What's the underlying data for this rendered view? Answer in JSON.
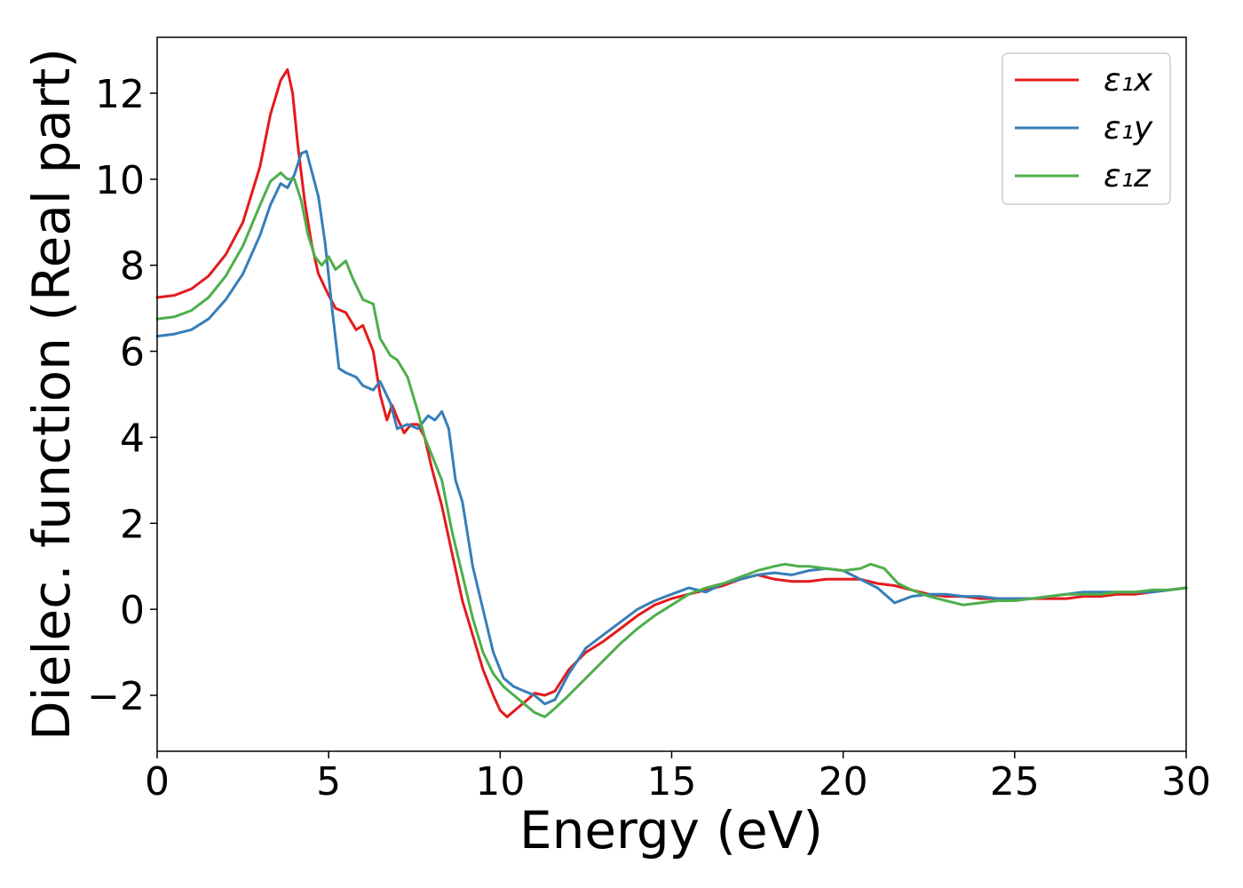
{
  "chart_data": {
    "type": "line",
    "title": "",
    "xlabel": "Energy (eV)",
    "ylabel": "Dielec. function (Real part)",
    "xlim": [
      0,
      30
    ],
    "ylim": [
      -3.3,
      13.3
    ],
    "xticks": [
      "0",
      "5",
      "10",
      "15",
      "20",
      "25",
      "30"
    ],
    "yticks": [
      "−2",
      "0",
      "2",
      "4",
      "6",
      "8",
      "10",
      "12"
    ],
    "grid": false,
    "legend_position": "top-right",
    "series": [
      {
        "name": "ε₁x",
        "color": "#e41a1c",
        "x": [
          0,
          0.5,
          1.0,
          1.5,
          2.0,
          2.5,
          3.0,
          3.3,
          3.6,
          3.8,
          3.95,
          4.1,
          4.3,
          4.5,
          4.7,
          5.0,
          5.2,
          5.5,
          5.8,
          6.0,
          6.3,
          6.5,
          6.7,
          6.85,
          7.0,
          7.2,
          7.4,
          7.6,
          7.8,
          8.0,
          8.3,
          8.6,
          8.9,
          9.2,
          9.5,
          9.8,
          10.0,
          10.2,
          10.5,
          10.8,
          11.0,
          11.3,
          11.6,
          12.0,
          12.5,
          13.0,
          13.5,
          14.0,
          14.5,
          15.0,
          15.5,
          16.0,
          16.5,
          17.0,
          17.5,
          18.0,
          18.5,
          19.0,
          19.5,
          20.0,
          20.5,
          21.0,
          21.5,
          22.0,
          22.5,
          23.0,
          23.5,
          24.0,
          24.5,
          25.0,
          25.5,
          26.0,
          26.5,
          27.0,
          27.5,
          28.0,
          28.5,
          29.0,
          29.5,
          30.0
        ],
        "values": [
          7.25,
          7.3,
          7.45,
          7.75,
          8.25,
          9.0,
          10.3,
          11.5,
          12.3,
          12.55,
          12.0,
          10.8,
          9.5,
          8.5,
          7.8,
          7.3,
          7.0,
          6.9,
          6.5,
          6.6,
          6.0,
          5.0,
          4.4,
          4.75,
          4.45,
          4.1,
          4.3,
          4.3,
          4.0,
          3.3,
          2.4,
          1.3,
          0.2,
          -0.6,
          -1.4,
          -2.0,
          -2.35,
          -2.5,
          -2.3,
          -2.1,
          -1.95,
          -2.0,
          -1.9,
          -1.4,
          -1.0,
          -0.75,
          -0.45,
          -0.15,
          0.1,
          0.25,
          0.35,
          0.45,
          0.55,
          0.7,
          0.8,
          0.7,
          0.65,
          0.65,
          0.7,
          0.7,
          0.7,
          0.6,
          0.55,
          0.45,
          0.35,
          0.3,
          0.3,
          0.25,
          0.25,
          0.25,
          0.25,
          0.25,
          0.25,
          0.3,
          0.3,
          0.35,
          0.35,
          0.4,
          0.45,
          0.5
        ]
      },
      {
        "name": "ε₁y",
        "color": "#377eb8",
        "x": [
          0,
          0.5,
          1.0,
          1.5,
          2.0,
          2.5,
          3.0,
          3.3,
          3.6,
          3.8,
          4.0,
          4.2,
          4.35,
          4.5,
          4.7,
          4.9,
          5.1,
          5.3,
          5.5,
          5.8,
          6.0,
          6.3,
          6.5,
          6.8,
          7.0,
          7.3,
          7.6,
          7.9,
          8.1,
          8.3,
          8.5,
          8.7,
          8.9,
          9.2,
          9.5,
          9.8,
          10.1,
          10.4,
          10.7,
          11.0,
          11.3,
          11.6,
          12.0,
          12.5,
          13.0,
          13.5,
          14.0,
          14.5,
          15.0,
          15.5,
          16.0,
          16.5,
          17.0,
          17.5,
          18.0,
          18.5,
          19.0,
          19.5,
          20.0,
          20.5,
          21.0,
          21.5,
          22.0,
          22.5,
          23.0,
          23.5,
          24.0,
          24.5,
          25.0,
          25.5,
          26.0,
          26.5,
          27.0,
          27.5,
          28.0,
          28.5,
          29.0,
          29.5,
          30.0
        ],
        "values": [
          6.35,
          6.4,
          6.5,
          6.75,
          7.2,
          7.8,
          8.7,
          9.4,
          9.9,
          9.8,
          10.1,
          10.6,
          10.65,
          10.2,
          9.6,
          8.5,
          7.0,
          5.6,
          5.5,
          5.4,
          5.2,
          5.1,
          5.3,
          4.8,
          4.2,
          4.3,
          4.2,
          4.5,
          4.4,
          4.6,
          4.2,
          3.0,
          2.5,
          1.0,
          0.0,
          -1.0,
          -1.6,
          -1.8,
          -1.9,
          -2.0,
          -2.2,
          -2.1,
          -1.5,
          -0.9,
          -0.6,
          -0.3,
          0.0,
          0.2,
          0.35,
          0.5,
          0.4,
          0.6,
          0.7,
          0.8,
          0.85,
          0.8,
          0.9,
          0.95,
          0.9,
          0.7,
          0.5,
          0.15,
          0.3,
          0.35,
          0.35,
          0.3,
          0.3,
          0.25,
          0.25,
          0.25,
          0.3,
          0.35,
          0.4,
          0.4,
          0.4,
          0.4,
          0.4,
          0.45,
          0.5
        ]
      },
      {
        "name": "ε₁z",
        "color": "#4daf4a",
        "x": [
          0,
          0.5,
          1.0,
          1.5,
          2.0,
          2.5,
          3.0,
          3.3,
          3.6,
          3.8,
          4.0,
          4.2,
          4.4,
          4.6,
          4.8,
          5.0,
          5.2,
          5.5,
          5.7,
          6.0,
          6.3,
          6.5,
          6.8,
          7.0,
          7.3,
          7.6,
          7.8,
          8.0,
          8.3,
          8.6,
          8.9,
          9.2,
          9.5,
          9.8,
          10.1,
          10.4,
          10.7,
          11.0,
          11.3,
          11.6,
          12.0,
          12.5,
          13.0,
          13.5,
          14.0,
          14.5,
          15.0,
          15.5,
          16.0,
          16.5,
          17.0,
          17.5,
          18.0,
          18.3,
          18.7,
          19.0,
          19.5,
          20.0,
          20.5,
          20.8,
          21.2,
          21.6,
          22.0,
          22.5,
          23.0,
          23.5,
          24.0,
          24.5,
          25.0,
          25.5,
          26.0,
          26.5,
          27.0,
          27.5,
          28.0,
          28.5,
          29.0,
          29.5,
          30.0
        ],
        "values": [
          6.75,
          6.8,
          6.95,
          7.25,
          7.75,
          8.45,
          9.4,
          9.95,
          10.15,
          10.0,
          10.0,
          9.5,
          8.7,
          8.2,
          8.0,
          8.2,
          7.9,
          8.1,
          7.7,
          7.2,
          7.1,
          6.3,
          5.9,
          5.8,
          5.4,
          4.6,
          4.0,
          3.6,
          3.0,
          1.8,
          0.8,
          -0.2,
          -1.0,
          -1.5,
          -1.8,
          -2.0,
          -2.2,
          -2.4,
          -2.5,
          -2.3,
          -2.0,
          -1.6,
          -1.2,
          -0.8,
          -0.45,
          -0.15,
          0.1,
          0.35,
          0.5,
          0.6,
          0.75,
          0.9,
          1.0,
          1.05,
          1.0,
          1.0,
          0.95,
          0.9,
          0.95,
          1.05,
          0.95,
          0.6,
          0.45,
          0.3,
          0.2,
          0.1,
          0.15,
          0.2,
          0.2,
          0.25,
          0.3,
          0.35,
          0.35,
          0.35,
          0.4,
          0.4,
          0.45,
          0.45,
          0.5
        ]
      }
    ]
  }
}
